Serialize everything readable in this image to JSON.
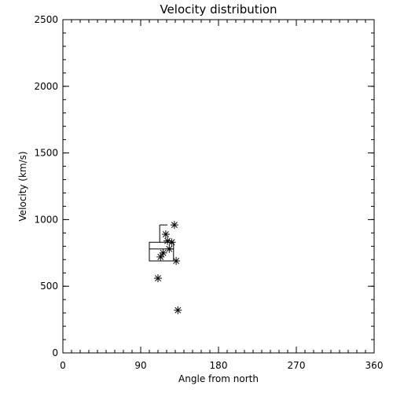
{
  "chart_data": {
    "type": "scatter",
    "title": "Velocity distribution",
    "xlabel": "Angle from north",
    "ylabel": "Velocity (km/s)",
    "xlim": [
      0,
      360
    ],
    "ylim": [
      0,
      2500
    ],
    "x_ticks": [
      "0",
      "90",
      "180",
      "270",
      "360"
    ],
    "y_ticks": [
      "0",
      "500",
      "1000",
      "1500",
      "2000",
      "2500"
    ],
    "grid": false,
    "series": [
      {
        "marker": "asterisk",
        "points": [
          {
            "x": 110,
            "y": 560
          },
          {
            "x": 113,
            "y": 720
          },
          {
            "x": 116,
            "y": 750
          },
          {
            "x": 119,
            "y": 890
          },
          {
            "x": 121,
            "y": 840
          },
          {
            "x": 123,
            "y": 780
          },
          {
            "x": 126,
            "y": 830
          },
          {
            "x": 129,
            "y": 960
          },
          {
            "x": 131,
            "y": 690
          },
          {
            "x": 133,
            "y": 320
          }
        ]
      }
    ],
    "boxplot": {
      "x_left": 100,
      "x_right": 128,
      "whisker_x": 112,
      "q1": 690,
      "median": 780,
      "q3": 830,
      "whisker_low": 690,
      "whisker_high": 960,
      "whisker_cap_right": 121
    }
  }
}
